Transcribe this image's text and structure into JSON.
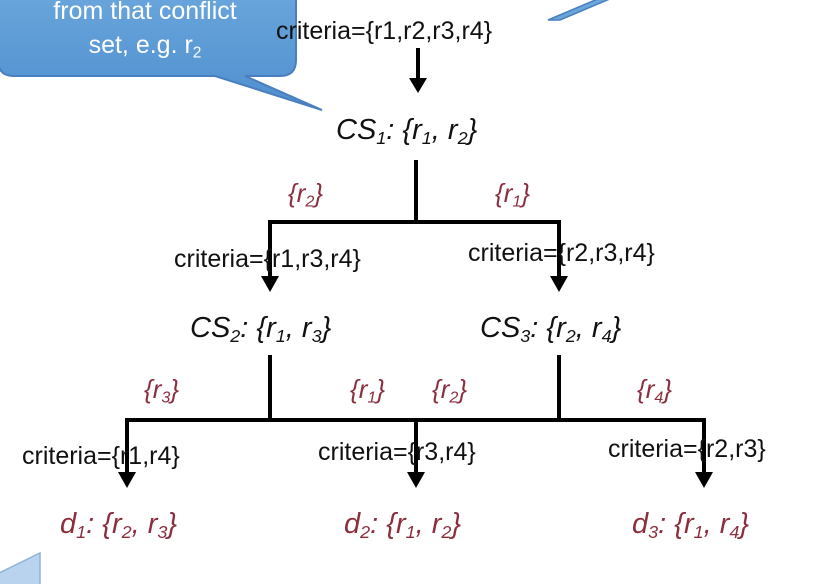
{
  "callout": {
    "line1": "from that conflict",
    "line2_prefix": "set, e.g. r",
    "line2_sub": "2"
  },
  "root": {
    "criteria": "criteria={r1,r2,r3,r4}"
  },
  "cs1": {
    "name": "CS",
    "sub": "1",
    "colon": ": {",
    "a": "r",
    "a_sub": "1",
    "sep": ", ",
    "b": "r",
    "b_sub": "2",
    "close": "}"
  },
  "cs2": {
    "name": "CS",
    "sub": "2",
    "colon": ": {",
    "a": "r",
    "a_sub": "1",
    "sep": ", ",
    "b": "r",
    "b_sub": "3",
    "close": "}"
  },
  "cs3": {
    "name": "CS",
    "sub": "3",
    "colon": ": {",
    "a": "r",
    "a_sub": "2",
    "sep": ", ",
    "b": "r",
    "b_sub": "4",
    "close": "}"
  },
  "edges": {
    "cs1_left": {
      "open": "{",
      "r": "r",
      "sub": "2",
      "close": "}"
    },
    "cs1_right": {
      "open": "{",
      "r": "r",
      "sub": "1",
      "close": "}"
    },
    "cs2_left": {
      "open": "{",
      "r": "r",
      "sub": "3",
      "close": "}"
    },
    "cs2_right": {
      "open": "{",
      "r": "r",
      "sub": "1",
      "close": "}"
    },
    "cs3_left": {
      "open": "{",
      "r": "r",
      "sub": "2",
      "close": "}"
    },
    "cs3_right": {
      "open": "{",
      "r": "r",
      "sub": "4",
      "close": "}"
    }
  },
  "criteria": {
    "cs2": "criteria={r1,r3,r4}",
    "cs3": "criteria={r2,r3,r4}",
    "d1": "criteria={r1,r4}",
    "d2": "criteria={r3,r4}",
    "d3": "criteria={r2,r3}"
  },
  "decisions": {
    "d1": {
      "name": "d",
      "sub": "1",
      "colon": ": {",
      "a": "r",
      "a_sub": "2",
      "sep": ", ",
      "b": "r",
      "b_sub": "3",
      "close": "}"
    },
    "d2": {
      "name": "d",
      "sub": "2",
      "colon": ": {",
      "a": "r",
      "a_sub": "1",
      "sep": ", ",
      "b": "r",
      "b_sub": "2",
      "close": "}"
    },
    "d3": {
      "name": "d",
      "sub": "3",
      "colon": ": {",
      "a": "r",
      "a_sub": "1",
      "sep": ", ",
      "b": "r",
      "b_sub": "4",
      "close": "}"
    }
  },
  "colors": {
    "callout_fill": "#5b9bd5",
    "callout_stroke": "#4a7fbf",
    "label_red": "#8b2f3f",
    "line": "#000000"
  }
}
